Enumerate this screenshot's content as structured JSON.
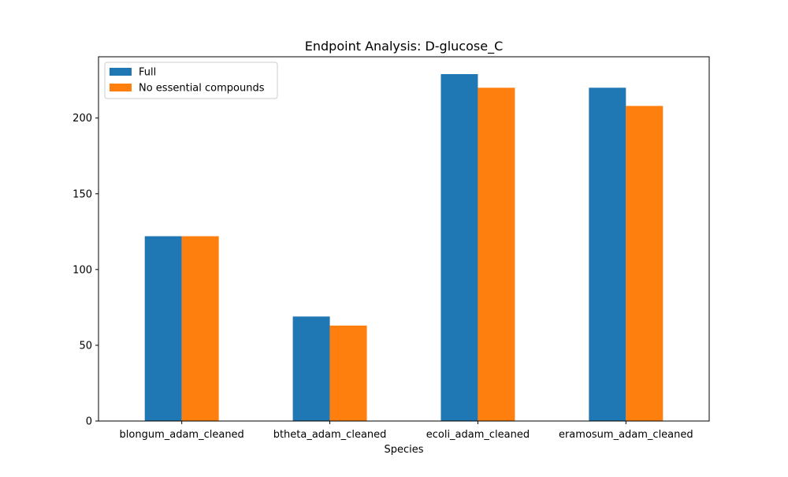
{
  "chart_data": {
    "type": "bar",
    "title": "Endpoint Analysis: D-glucose_C",
    "xlabel": "Species",
    "ylabel": "",
    "categories": [
      "blongum_adam_cleaned",
      "btheta_adam_cleaned",
      "ecoli_adam_cleaned",
      "eramosum_adam_cleaned"
    ],
    "series": [
      {
        "name": "Full",
        "color": "#1f77b4",
        "values": [
          122,
          69,
          229,
          220
        ]
      },
      {
        "name": "No essential compounds",
        "color": "#ff7f0e",
        "values": [
          122,
          63,
          220,
          208
        ]
      }
    ],
    "ylim": [
      0,
      240.45
    ],
    "yticks": [
      0,
      50,
      100,
      150,
      200
    ],
    "grid": false,
    "legend_position": "top-left"
  }
}
